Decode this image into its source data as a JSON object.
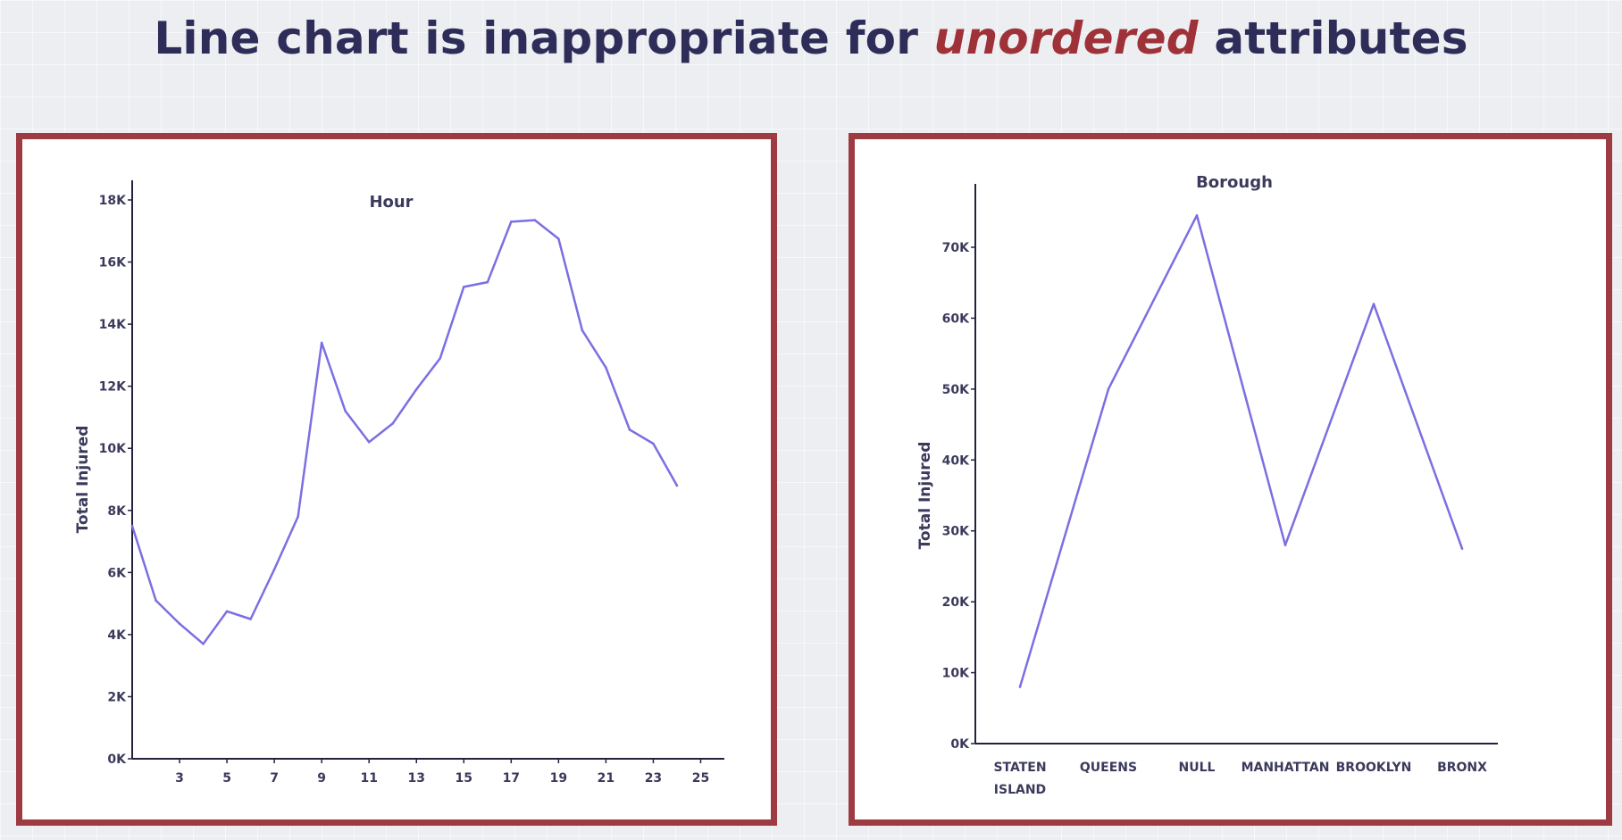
{
  "slide": {
    "title_part1": "Line chart",
    "title_part2": "is inappropriate for",
    "title_accent": "unordered",
    "title_part3": "attributes"
  },
  "colors": {
    "line": "#7b6fe2",
    "border": "#9e3a42",
    "accent": "#9e3238",
    "text": "#2e2c58"
  },
  "chart_data": [
    {
      "type": "line",
      "title": "Hour",
      "xlabel": "",
      "ylabel": "Total Injured",
      "xlim": [
        1,
        26
      ],
      "ylim": [
        0,
        18000
      ],
      "x": [
        1,
        2,
        3,
        4,
        5,
        6,
        7,
        8,
        9,
        10,
        11,
        12,
        13,
        14,
        15,
        16,
        17,
        18,
        19,
        20,
        21,
        22,
        23,
        24
      ],
      "values": [
        7500,
        5100,
        4350,
        3700,
        4750,
        4500,
        6100,
        7800,
        13400,
        11200,
        10200,
        10800,
        11900,
        12900,
        15200,
        15350,
        17300,
        17350,
        16750,
        13800,
        12600,
        10600,
        10150,
        8800
      ],
      "xticks": [
        "3",
        "5",
        "7",
        "9",
        "11",
        "13",
        "15",
        "17",
        "19",
        "21",
        "23",
        "25"
      ],
      "xtick_values": [
        3,
        5,
        7,
        9,
        11,
        13,
        15,
        17,
        19,
        21,
        23,
        25
      ],
      "yticks": [
        "0K",
        "2K",
        "4K",
        "6K",
        "8K",
        "10K",
        "12K",
        "14K",
        "16K",
        "18K"
      ],
      "ytick_values": [
        0,
        2000,
        4000,
        6000,
        8000,
        10000,
        12000,
        14000,
        16000,
        18000
      ],
      "grid": false
    },
    {
      "type": "line",
      "title": "Borough",
      "xlabel": "",
      "ylabel": "Total Injured",
      "ylim": [
        0,
        77000
      ],
      "categories": [
        "STATEN ISLAND",
        "QUEENS",
        "NULL",
        "MANHATTAN",
        "BROOKLYN",
        "BRONX"
      ],
      "category_labels": [
        [
          "STATEN",
          "ISLAND"
        ],
        [
          "QUEENS"
        ],
        [
          "NULL"
        ],
        [
          "MANHATTAN"
        ],
        [
          "BROOKLYN"
        ],
        [
          "BRONX"
        ]
      ],
      "values": [
        8000,
        50000,
        74500,
        28000,
        62000,
        27500
      ],
      "yticks": [
        "0K",
        "10K",
        "20K",
        "30K",
        "40K",
        "50K",
        "60K",
        "70K"
      ],
      "ytick_values": [
        0,
        10000,
        20000,
        30000,
        40000,
        50000,
        60000,
        70000
      ],
      "grid": false
    }
  ]
}
